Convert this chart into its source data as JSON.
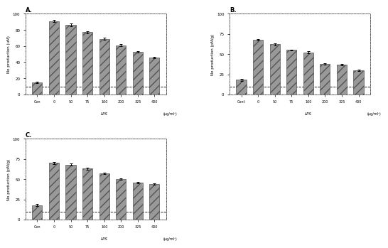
{
  "subplots": [
    {
      "label": "A.",
      "categories": [
        "Con",
        "0",
        "50",
        "75",
        "100",
        "200",
        "325",
        "400"
      ],
      "xlabel_suffix": "(μg/ml¹)",
      "xlabel_lps": "LPS",
      "values": [
        15,
        91,
        86,
        77,
        69,
        61,
        53,
        46
      ],
      "errors": [
        1.0,
        1.5,
        1.5,
        1.2,
        1.2,
        1.0,
        1.0,
        0.8
      ],
      "ylabel": "No production (uM)",
      "ylim": [
        0,
        100
      ],
      "yticks": [
        0,
        20,
        40,
        60,
        80,
        100
      ]
    },
    {
      "label": "B.",
      "categories": [
        "Cont",
        "0",
        "50",
        "75",
        "100",
        "200",
        "325",
        "400"
      ],
      "xlabel_suffix": "(μg/ml¹)",
      "xlabel_lps": "LPS",
      "values": [
        18,
        68,
        62,
        55,
        52,
        38,
        37,
        30
      ],
      "errors": [
        1.0,
        1.0,
        1.0,
        0.8,
        1.2,
        0.8,
        0.8,
        0.8
      ],
      "ylabel": "No production (pM/g)",
      "ylim": [
        0,
        100
      ],
      "yticks": [
        0,
        25,
        50,
        75,
        100
      ]
    },
    {
      "label": "C.",
      "categories": [
        "Con",
        "0",
        "50",
        "75",
        "100",
        "200",
        "325",
        "400"
      ],
      "xlabel_suffix": "(μg/ml¹)",
      "xlabel_lps": "LPS",
      "values": [
        18,
        70,
        68,
        63,
        57,
        50,
        46,
        44
      ],
      "errors": [
        1.5,
        1.5,
        1.2,
        1.0,
        1.0,
        0.8,
        0.8,
        0.8
      ],
      "ylabel": "No production (pM/g)",
      "ylim": [
        0,
        100
      ],
      "yticks": [
        0,
        25,
        50,
        75,
        100
      ]
    }
  ],
  "bar_color": "#999999",
  "bar_edge_color": "#555555",
  "bar_hatch": "///",
  "background_color": "#ffffff",
  "error_color": "black",
  "dashed_line_y": 10
}
